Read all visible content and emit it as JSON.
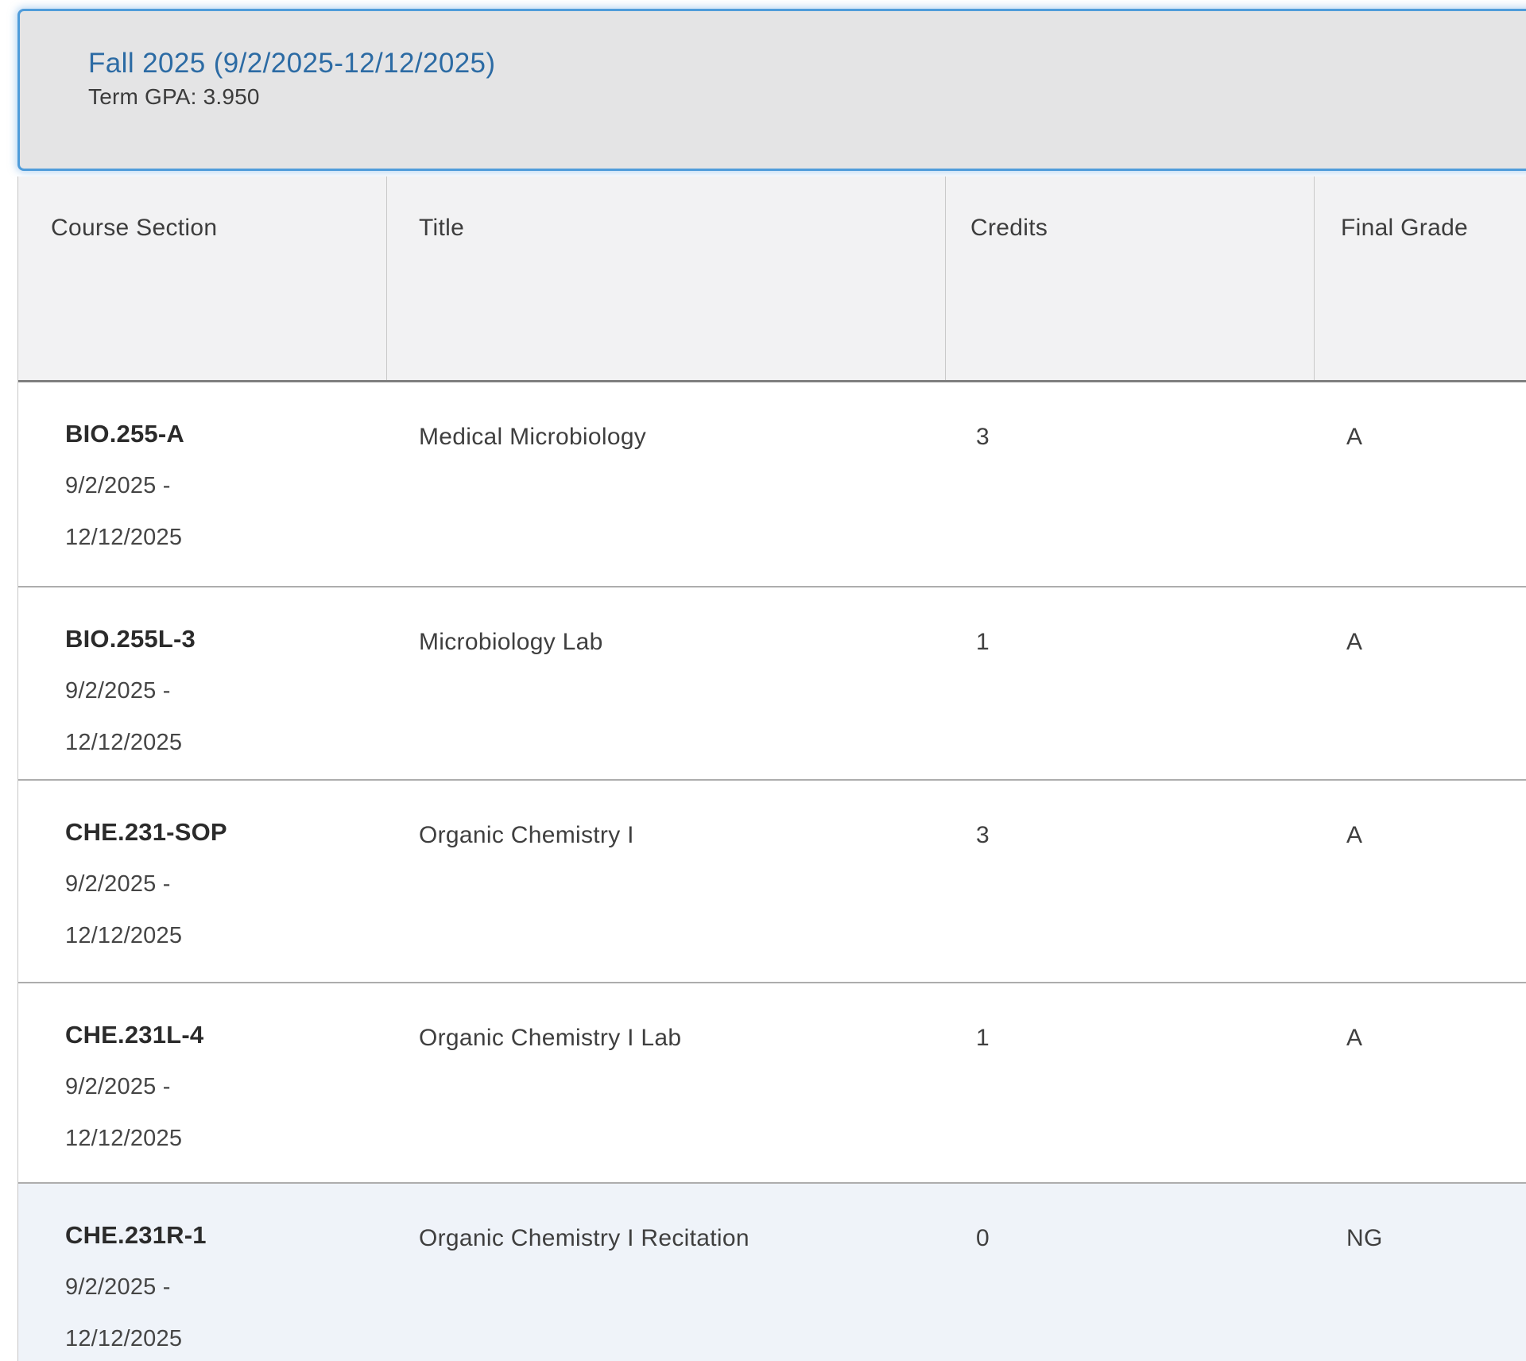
{
  "term": {
    "title": "Fall 2025 (9/2/2025-12/12/2025)",
    "gpa": "Term GPA: 3.950"
  },
  "table": {
    "columns": [
      "Course Section",
      "Title",
      "Credits",
      "Final Grade"
    ],
    "rows": [
      {
        "section": "BIO.255-A",
        "date_start": "9/2/2025 -",
        "date_end": "12/12/2025",
        "title": "Medical Microbiology",
        "credits": "3",
        "grade": "A",
        "highlighted": false
      },
      {
        "section": "BIO.255L-3",
        "date_start": "9/2/2025 -",
        "date_end": "12/12/2025",
        "title": "Microbiology Lab",
        "credits": "1",
        "grade": "A",
        "highlighted": false
      },
      {
        "section": "CHE.231-SOP",
        "date_start": "9/2/2025 -",
        "date_end": "12/12/2025",
        "title": "Organic Chemistry I",
        "credits": "3",
        "grade": "A",
        "highlighted": false
      },
      {
        "section": "CHE.231L-4",
        "date_start": "9/2/2025 -",
        "date_end": "12/12/2025",
        "title": "Organic Chemistry I Lab",
        "credits": "1",
        "grade": "A",
        "highlighted": false
      },
      {
        "section": "CHE.231R-1",
        "date_start": "9/2/2025 -",
        "date_end": "12/12/2025",
        "title": "Organic Chemistry I Recitation",
        "credits": "0",
        "grade": "NG",
        "highlighted": true
      }
    ]
  },
  "colors": {
    "card_border": "#4f9cda",
    "card_background": "#e4e4e5",
    "link_blue": "#2c6ba4",
    "header_background": "#f2f2f3",
    "highlight_row_background": "#eff3f9"
  }
}
